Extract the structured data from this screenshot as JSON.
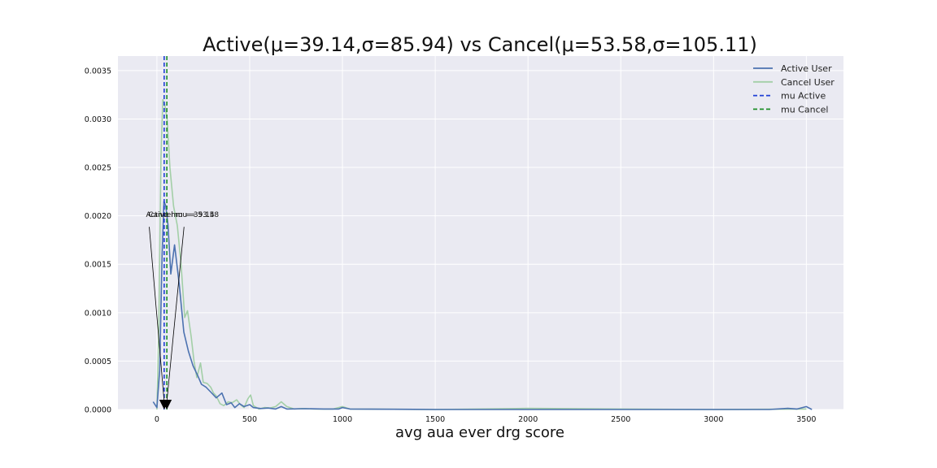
{
  "chart_data": {
    "type": "line",
    "title": "Active(μ=39.14,σ=85.94) vs Cancel(μ=53.58,σ=105.11)",
    "xlabel": "avg aua ever drg score",
    "ylabel": "",
    "xlim": [
      -210,
      3700
    ],
    "ylim": [
      0,
      0.00365
    ],
    "xticks": [
      0,
      500,
      1000,
      1500,
      2000,
      2500,
      3000,
      3500
    ],
    "yticks": [
      0.0,
      0.0005,
      0.001,
      0.0015,
      0.002,
      0.0025,
      0.003,
      0.0035
    ],
    "ytick_labels": [
      "0.0000",
      "0.0005",
      "0.0010",
      "0.0015",
      "0.0020",
      "0.0025",
      "0.0030",
      "0.0035"
    ],
    "grid": true,
    "legend_position": "top-right",
    "series": [
      {
        "name": "Active User",
        "color": "#4c72b0",
        "points": [
          [
            -20,
            8e-05
          ],
          [
            0,
            2e-05
          ],
          [
            15,
            0.0004
          ],
          [
            28,
            0.0016
          ],
          [
            38,
            0.00215
          ],
          [
            48,
            0.0021
          ],
          [
            60,
            0.0019
          ],
          [
            75,
            0.0014
          ],
          [
            95,
            0.0017
          ],
          [
            120,
            0.0013
          ],
          [
            145,
            0.0008
          ],
          [
            170,
            0.0006
          ],
          [
            195,
            0.00045
          ],
          [
            220,
            0.00035
          ],
          [
            240,
            0.00026
          ],
          [
            265,
            0.00023
          ],
          [
            290,
            0.00018
          ],
          [
            320,
            0.00012
          ],
          [
            350,
            0.00017
          ],
          [
            375,
            5e-05
          ],
          [
            400,
            7e-05
          ],
          [
            420,
            2e-05
          ],
          [
            445,
            6e-05
          ],
          [
            470,
            3e-05
          ],
          [
            500,
            5e-05
          ],
          [
            520,
            2e-05
          ],
          [
            560,
            1e-05
          ],
          [
            600,
            1.5e-05
          ],
          [
            640,
            5e-06
          ],
          [
            670,
            3e-05
          ],
          [
            700,
            5e-06
          ],
          [
            800,
            8e-06
          ],
          [
            900,
            5e-06
          ],
          [
            980,
            5e-06
          ],
          [
            1000,
            2e-05
          ],
          [
            1040,
            5e-06
          ],
          [
            1500,
            0.0
          ],
          [
            2000,
            0.0
          ],
          [
            2500,
            0.0
          ],
          [
            3000,
            0.0
          ],
          [
            3300,
            0.0
          ],
          [
            3400,
            1.2e-05
          ],
          [
            3450,
            5e-06
          ],
          [
            3500,
            3e-05
          ],
          [
            3530,
            0.0
          ]
        ]
      },
      {
        "name": "Cancel User",
        "color": "#a3cfa7",
        "points": [
          [
            0,
            0.0
          ],
          [
            10,
            0.0008
          ],
          [
            22,
            0.0026
          ],
          [
            32,
            0.0032
          ],
          [
            42,
            0.00315
          ],
          [
            55,
            0.003
          ],
          [
            70,
            0.0025
          ],
          [
            90,
            0.0021
          ],
          [
            110,
            0.0019
          ],
          [
            130,
            0.0015
          ],
          [
            150,
            0.00095
          ],
          [
            165,
            0.00102
          ],
          [
            185,
            0.00075
          ],
          [
            200,
            0.0005
          ],
          [
            215,
            0.00033
          ],
          [
            235,
            0.00048
          ],
          [
            250,
            0.00028
          ],
          [
            270,
            0.00027
          ],
          [
            290,
            0.00023
          ],
          [
            305,
            0.00017
          ],
          [
            320,
            0.00014
          ],
          [
            340,
            6e-05
          ],
          [
            360,
            4e-05
          ],
          [
            385,
            8e-05
          ],
          [
            405,
            7e-05
          ],
          [
            430,
            0.0001
          ],
          [
            450,
            5e-05
          ],
          [
            470,
            2e-05
          ],
          [
            490,
            0.00011
          ],
          [
            505,
            0.00015
          ],
          [
            520,
            4e-05
          ],
          [
            550,
            5e-06
          ],
          [
            580,
            2e-05
          ],
          [
            610,
            1.5e-05
          ],
          [
            640,
            3e-05
          ],
          [
            670,
            8e-05
          ],
          [
            700,
            3e-05
          ],
          [
            740,
            5e-06
          ],
          [
            780,
            1e-05
          ],
          [
            850,
            5e-06
          ],
          [
            950,
            5e-06
          ],
          [
            1000,
            3e-05
          ],
          [
            1040,
            5e-06
          ],
          [
            1500,
            0.0
          ],
          [
            2000,
            1.2e-05
          ],
          [
            2500,
            5e-06
          ],
          [
            3000,
            0.0
          ],
          [
            3500,
            5e-06
          ]
        ]
      }
    ],
    "lines": [
      {
        "name": "mu Active",
        "x": 39.14,
        "color": "#1f3fd6",
        "style": "dashed"
      },
      {
        "name": "mu Cancel",
        "x": 53.58,
        "color": "#1f8f2a",
        "style": "dashed"
      }
    ],
    "annotations": [
      {
        "text": "Active mu = 39.14",
        "text_x": -50,
        "text_y": 0.00197,
        "arrow_to_x": 39.14,
        "arrow_to_y": 0.0
      },
      {
        "text": "Cancel mu = 53.58",
        "text_x": 155,
        "text_y": 0.00197,
        "arrow_to_x": 53.58,
        "arrow_to_y": 0.0
      }
    ]
  }
}
